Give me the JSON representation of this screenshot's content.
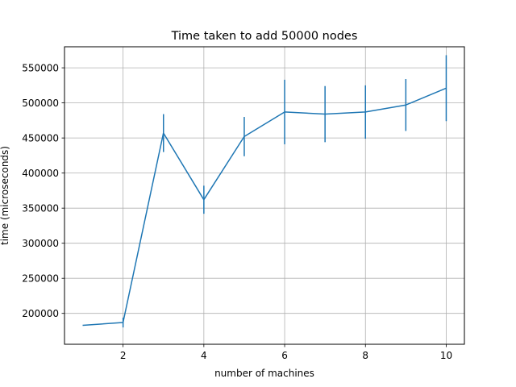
{
  "chart_data": {
    "type": "line",
    "title": "Time taken to add 50000 nodes",
    "xlabel": "number of machines",
    "ylabel": "time (microseconds)",
    "xlim": [
      0.55,
      10.45
    ],
    "ylim": [
      156000,
      580000
    ],
    "xticks": [
      2,
      4,
      6,
      8,
      10
    ],
    "yticks": [
      200000,
      250000,
      300000,
      350000,
      400000,
      450000,
      500000,
      550000
    ],
    "grid": true,
    "line_color": "#1f77b4",
    "series": [
      {
        "x": [
          1,
          2,
          3,
          4,
          5,
          6,
          7,
          8,
          9,
          10
        ],
        "y": [
          183000,
          187000,
          457000,
          362000,
          452000,
          487000,
          484000,
          487000,
          497000,
          521000
        ],
        "error": [
          0,
          7000,
          27000,
          20000,
          28000,
          46000,
          40000,
          38000,
          37000,
          47000
        ]
      }
    ]
  }
}
